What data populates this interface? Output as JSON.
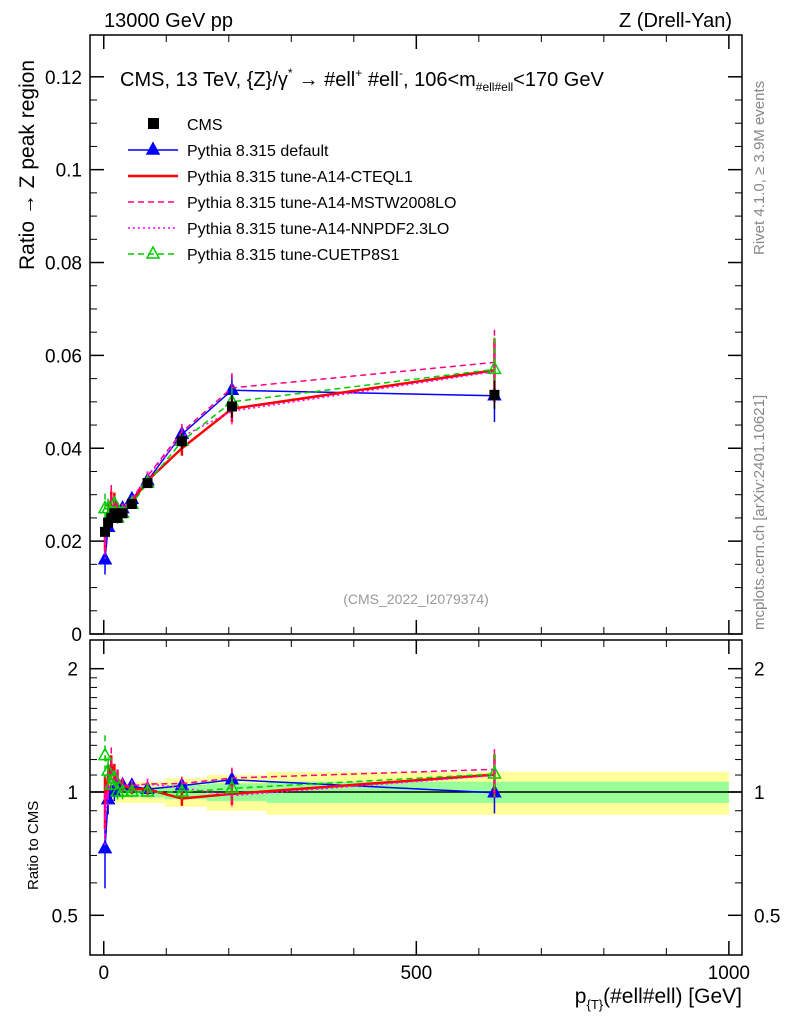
{
  "chart_data": {
    "type": "line",
    "top_left_title": "13000 GeV pp",
    "top_right_title": "Z (Drell-Yan)",
    "label_main": "CMS, 13 TeV, {Z}/γ",
    "label_sup1": "*",
    "label_arrow": "→  #ell",
    "label_sup2": "+",
    "label_mid": " #ell",
    "label_sup3": "-",
    "label_end1": ", 106<m",
    "label_sub": "#ell#ell",
    "label_end2": "<170 GeV",
    "side_label_top": "Rivet 4.1.0, ≥ 3.9M events",
    "side_label_bottom": "mcplots.cern.ch [arXiv:2401.10621]",
    "analysis_id": "(CMS_2022_I2079374)",
    "ylabel": "Ratio → Z peak region",
    "ratio_ylabel": "Ratio to CMS",
    "xlabel": "p",
    "xlabel_sub": "{T}",
    "xlabel_rest": "(#ell#ell) [GeV]",
    "xlim": [
      -22,
      1021
    ],
    "ylim": [
      0,
      0.129
    ],
    "ratio_ylim": [
      0.4,
      2.35
    ],
    "ratio_scale": "log",
    "yticks": [
      0,
      0.02,
      0.04,
      0.06,
      0.08,
      0.1,
      0.12
    ],
    "ytick_labels": [
      "0",
      "0.02",
      "0.04",
      "0.06",
      "0.08",
      "0.1",
      "0.12"
    ],
    "ratio_ticks": [
      0.5,
      1,
      2
    ],
    "ratio_tick_labels": [
      "0.5",
      "1",
      "2"
    ],
    "xticks": [
      0,
      500,
      1000
    ],
    "xtick_labels": [
      "0",
      "500",
      "1000"
    ],
    "legend_position": "top-left",
    "x": [
      2,
      7,
      12,
      17,
      22,
      30,
      45,
      70,
      125,
      205,
      625
    ],
    "data": {
      "name": "CMS",
      "values": [
        0.022,
        0.024,
        0.025,
        0.026,
        0.025,
        0.026,
        0.028,
        0.0325,
        0.0415,
        0.049,
        0.0515
      ],
      "rel_err": [
        0.03,
        0.03,
        0.03,
        0.03,
        0.03,
        0.03,
        0.03,
        0.03,
        0.04,
        0.05,
        0.06
      ]
    },
    "series": [
      {
        "name": "Pythia 8.315 default",
        "color": "#0000ff",
        "style": "solid",
        "marker": "triangle-filled",
        "values": [
          0.016,
          0.023,
          0.025,
          0.026,
          0.026,
          0.027,
          0.029,
          0.033,
          0.043,
          0.0525,
          0.0513
        ],
        "rel_err": [
          0.2,
          0.08,
          0.06,
          0.05,
          0.05,
          0.04,
          0.03,
          0.03,
          0.04,
          0.06,
          0.11
        ]
      },
      {
        "name": "Pythia 8.315 tune-A14-CTEQL1",
        "color": "#ff0000",
        "style": "solid-thick",
        "marker": "none",
        "values": [
          0.021,
          0.026,
          0.029,
          0.029,
          0.027,
          0.027,
          0.0285,
          0.033,
          0.04,
          0.0485,
          0.0568
        ],
        "rel_err": [
          0.15,
          0.08,
          0.06,
          0.05,
          0.05,
          0.04,
          0.03,
          0.03,
          0.04,
          0.06,
          0.12
        ]
      },
      {
        "name": "Pythia 8.315 tune-A14-MSTW2008LO",
        "color": "#ff0080",
        "style": "dashed",
        "marker": "none",
        "values": [
          0.02,
          0.025,
          0.03,
          0.028,
          0.027,
          0.027,
          0.029,
          0.034,
          0.0435,
          0.053,
          0.0585
        ],
        "rel_err": [
          0.15,
          0.08,
          0.07,
          0.05,
          0.05,
          0.04,
          0.03,
          0.03,
          0.04,
          0.06,
          0.12
        ]
      },
      {
        "name": "Pythia 8.315 tune-A14-NNPDF2.3LO",
        "color": "#ff00ff",
        "style": "dotted",
        "marker": "none",
        "values": [
          0.019,
          0.024,
          0.027,
          0.028,
          0.027,
          0.027,
          0.029,
          0.034,
          0.0425,
          0.048,
          0.0565
        ],
        "rel_err": [
          0.15,
          0.08,
          0.06,
          0.05,
          0.05,
          0.04,
          0.03,
          0.03,
          0.04,
          0.06,
          0.12
        ]
      },
      {
        "name": "Pythia 8.315 tune-CUETP8S1",
        "color": "#00cc00",
        "style": "dashed",
        "marker": "triangle-open",
        "values": [
          0.027,
          0.027,
          0.026,
          0.028,
          0.025,
          0.026,
          0.028,
          0.0325,
          0.0415,
          0.05,
          0.057
        ],
        "rel_err": [
          0.12,
          0.08,
          0.06,
          0.05,
          0.05,
          0.04,
          0.03,
          0.03,
          0.04,
          0.06,
          0.12
        ]
      }
    ]
  }
}
